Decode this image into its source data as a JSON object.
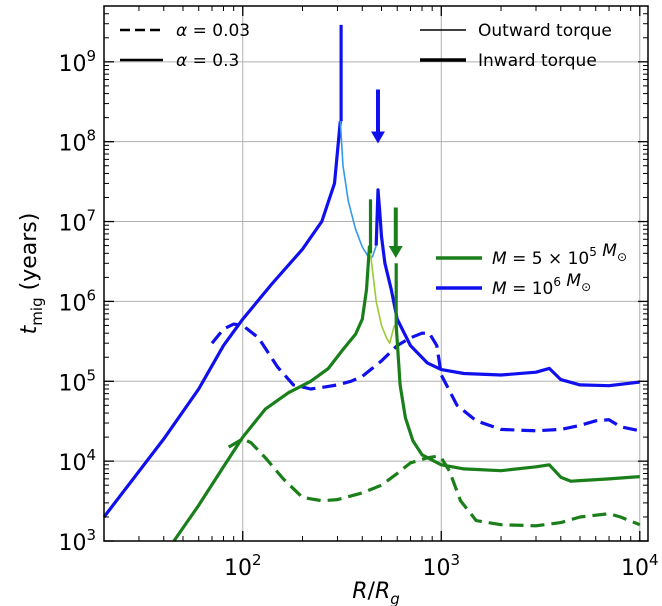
{
  "chart_data": {
    "type": "line",
    "xlabel": "R/R_g",
    "ylabel": "t_mig (years)",
    "x_scale": "log",
    "y_scale": "log",
    "xlim": [
      20,
      11000
    ],
    "ylim": [
      1000,
      5000000000
    ],
    "grid": true,
    "x_ticks": [
      {
        "value": 100,
        "base": "10",
        "exp": "2"
      },
      {
        "value": 1000,
        "base": "10",
        "exp": "3"
      },
      {
        "value": 10000,
        "base": "10",
        "exp": "4"
      }
    ],
    "y_ticks": [
      {
        "value": 1000,
        "base": "10",
        "exp": "3"
      },
      {
        "value": 10000,
        "base": "10",
        "exp": "4"
      },
      {
        "value": 100000,
        "base": "10",
        "exp": "5"
      },
      {
        "value": 1000000,
        "base": "10",
        "exp": "6"
      },
      {
        "value": 10000000,
        "base": "10",
        "exp": "7"
      },
      {
        "value": 100000000,
        "base": "10",
        "exp": "8"
      },
      {
        "value": 1000000000,
        "base": "10",
        "exp": "9"
      }
    ],
    "legend_alpha": {
      "placement": "top-left",
      "entries": [
        {
          "style": "dashed",
          "label": "α = 0.03"
        },
        {
          "style": "solid",
          "label": "α = 0.3"
        }
      ]
    },
    "legend_torque": {
      "placement": "top-right",
      "entries": [
        {
          "width": "thin",
          "label": "Outward torque"
        },
        {
          "width": "thick",
          "label": "Inward torque"
        }
      ]
    },
    "legend_mass": {
      "placement": "center-right",
      "entries": [
        {
          "color": "#1a7f1a",
          "label": "M = 5 × 10^5 M_⊙"
        },
        {
          "color": "#1010ee",
          "label": "M = 10^6 M_⊙"
        }
      ]
    },
    "colors": {
      "blue": "#1010ee",
      "light_blue": "#3399ee",
      "green": "#1a7f1a",
      "light_green": "#99cc33"
    },
    "arrows": [
      {
        "x": 480,
        "y_top": 450000000,
        "y_tip": 95000000,
        "color": "#1010ee"
      },
      {
        "x": 590,
        "y_top": 15000000,
        "y_tip": 3500000,
        "color": "#1a7f1a"
      }
    ],
    "series": [
      {
        "color": "#1010ee",
        "style": "solid",
        "torque": "inward",
        "x": [
          20,
          40,
          60,
          80,
          100,
          140,
          200,
          250,
          290,
          310
        ],
        "y": [
          2000,
          19000,
          80000,
          280000,
          600000,
          1650000,
          4500000,
          10000000,
          30000000,
          180000000
        ]
      },
      {
        "color": "#1010ee",
        "style": "solid",
        "torque": "inward",
        "x": [
          313,
          313
        ],
        "y": [
          180000000,
          2900000000
        ]
      },
      {
        "color": "#3399ee",
        "style": "solid",
        "torque": "outward",
        "x": [
          310,
          320,
          340,
          370,
          400,
          430,
          450,
          470
        ],
        "y": [
          180000000,
          50000000,
          18000000,
          8000000,
          4800000,
          3600000,
          3600000,
          5000000
        ]
      },
      {
        "color": "#1010ee",
        "style": "solid",
        "torque": "inward",
        "x": [
          470,
          480,
          490,
          500,
          520,
          560,
          600,
          700,
          850,
          1000,
          1300,
          2000,
          3000,
          3500,
          4000,
          5000,
          7000,
          10000
        ],
        "y": [
          5000000,
          25000000,
          13000000,
          6500000,
          3000000,
          1400000,
          600000,
          280000,
          170000,
          140000,
          125000,
          120000,
          130000,
          145000,
          105000,
          90000,
          88000,
          98000
        ]
      },
      {
        "color": "#1010ee",
        "style": "dashed",
        "torque": "inward",
        "x": [
          70,
          80,
          90,
          100,
          120,
          150,
          180,
          220,
          260,
          300,
          350,
          400,
          500,
          600,
          700,
          800,
          870,
          950,
          1000,
          1200,
          1500,
          2000,
          3000,
          4000,
          5000,
          6000,
          7000,
          8000,
          10000
        ],
        "y": [
          300000,
          450000,
          520000,
          500000,
          350000,
          150000,
          90000,
          80000,
          85000,
          90000,
          100000,
          115000,
          180000,
          280000,
          350000,
          400000,
          400000,
          280000,
          120000,
          50000,
          32000,
          25000,
          24000,
          25000,
          28000,
          32000,
          33000,
          27000,
          24000
        ]
      },
      {
        "color": "#1a7f1a",
        "style": "solid",
        "torque": "inward",
        "x": [
          45,
          60,
          80,
          100,
          130,
          170,
          220,
          270,
          320,
          370,
          400,
          420,
          435
        ],
        "y": [
          1000,
          2800,
          8500,
          20000,
          45000,
          72000,
          100000,
          145000,
          250000,
          390000,
          600000,
          1400000,
          5000000
        ]
      },
      {
        "color": "#1a7f1a",
        "style": "solid",
        "torque": "inward",
        "x": [
          440,
          440
        ],
        "y": [
          4000000,
          19000000
        ]
      },
      {
        "color": "#99cc33",
        "style": "solid",
        "torque": "outward",
        "x": [
          440,
          450,
          470,
          500,
          530,
          550,
          580
        ],
        "y": [
          4000000,
          2500000,
          1000000,
          500000,
          350000,
          300000,
          500000
        ]
      },
      {
        "color": "#1a7f1a",
        "style": "solid",
        "torque": "inward",
        "x": [
          593,
          593,
          620,
          660,
          720,
          800,
          1000,
          1300,
          2000,
          3000,
          3500,
          4000,
          4500,
          5000,
          7000,
          10000
        ],
        "y": [
          3000000,
          500000,
          90000,
          35000,
          18000,
          12000,
          9000,
          8000,
          7600,
          8500,
          9000,
          6300,
          5600,
          5700,
          6000,
          6400
        ]
      },
      {
        "color": "#1a7f1a",
        "style": "dashed",
        "torque": "inward",
        "x": [
          85,
          100,
          110,
          130,
          160,
          200,
          250,
          300,
          400,
          500,
          600,
          700,
          850,
          950,
          1000,
          1100,
          1250,
          1500,
          2000,
          3000,
          4000,
          5000,
          7000,
          8000,
          10000
        ],
        "y": [
          15000,
          19000,
          17000,
          11000,
          6000,
          3500,
          3200,
          3300,
          4000,
          5000,
          7000,
          9500,
          11000,
          11500,
          11000,
          7500,
          3200,
          1800,
          1600,
          1550,
          1700,
          2000,
          2200,
          2000,
          1600
        ]
      }
    ]
  }
}
